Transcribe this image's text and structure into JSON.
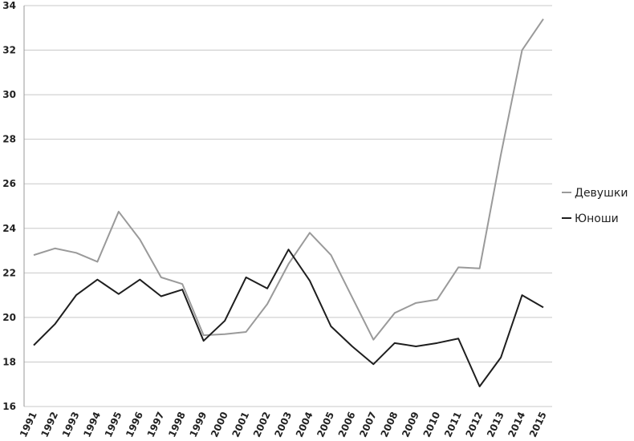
{
  "chart_data": {
    "type": "line",
    "categories": [
      "1991",
      "1992",
      "1993",
      "1994",
      "1995",
      "1996",
      "1997",
      "1998",
      "1999",
      "2000",
      "2001",
      "2002",
      "2003",
      "2004",
      "2005",
      "2006",
      "2007",
      "2008",
      "2009",
      "2010",
      "2011",
      "2012",
      "2013",
      "2014",
      "2015"
    ],
    "series": [
      {
        "name": "Девушки",
        "color": "#9a9a9a",
        "values": [
          22.8,
          23.1,
          22.9,
          22.5,
          24.75,
          23.5,
          21.8,
          21.5,
          19.2,
          19.25,
          19.35,
          20.6,
          22.4,
          23.8,
          22.8,
          20.9,
          19.0,
          20.2,
          20.65,
          20.8,
          22.25,
          22.2,
          27.3,
          32.0,
          33.4
        ]
      },
      {
        "name": "Юноши",
        "color": "#1e1e1e",
        "values": [
          18.75,
          19.7,
          21.0,
          21.7,
          21.05,
          21.7,
          20.95,
          21.25,
          18.95,
          19.85,
          21.8,
          21.3,
          23.05,
          21.65,
          19.6,
          18.7,
          17.9,
          18.85,
          18.7,
          18.85,
          19.05,
          16.9,
          18.2,
          21.0,
          20.45
        ]
      }
    ],
    "ylim": [
      16,
      34
    ],
    "yticks": [
      16,
      18,
      20,
      22,
      24,
      26,
      28,
      30,
      32,
      34
    ],
    "grid": true,
    "legend": "right"
  }
}
